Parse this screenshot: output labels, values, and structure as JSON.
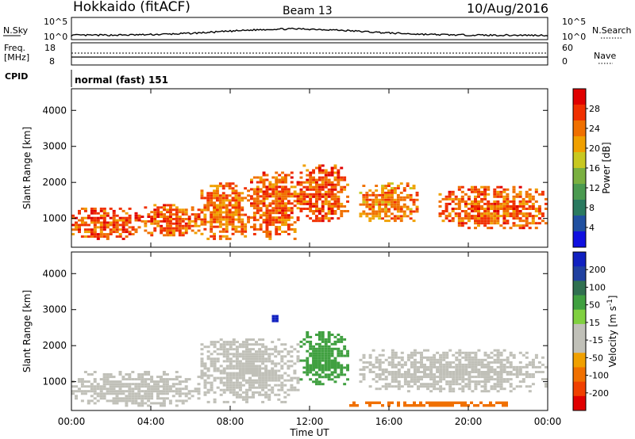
{
  "header": {
    "station": "Hokkaido (fitACF)",
    "beam": "Beam 13",
    "date": "10/Aug/2016"
  },
  "small_panels": {
    "nsky": {
      "label": "N.Sky",
      "tick_top": "10^5",
      "tick_bottom": "10^0",
      "right_label": "N.Search",
      "right_tick_top": "10^5",
      "right_tick_bottom": "10^0"
    },
    "freq": {
      "label_line1": "Freq.",
      "label_line2": "[MHz]",
      "tick_top": "18",
      "tick_bottom": "8",
      "right_label": "Nave",
      "right_tick_top": "60",
      "right_tick_bottom": "0"
    },
    "cpid": {
      "label": "CPID",
      "text": "normal (fast) 151"
    }
  },
  "x_axis": {
    "label": "Time UT",
    "ticks": [
      "00:00",
      "04:00",
      "08:00",
      "12:00",
      "16:00",
      "20:00",
      "00:00"
    ]
  },
  "colors": {
    "power": [
      "#1010e0",
      "#2050a0",
      "#2a7a60",
      "#4a9a50",
      "#7ab040",
      "#c8c820",
      "#f0a000",
      "#f07000",
      "#f03000",
      "#e00000"
    ],
    "velocity": [
      "#e00000",
      "#f04000",
      "#f07000",
      "#f0a000",
      "#c0c0b8",
      "#c0c0b8",
      "#80d040",
      "#40a040",
      "#307050",
      "#2040a0",
      "#1020c0"
    ]
  },
  "chart_data": [
    {
      "type": "heatmap",
      "panel": "power",
      "ylabel": "Slant Range [km]",
      "xlabel": "",
      "yticks": [
        "1000",
        "2000",
        "3000",
        "4000"
      ],
      "ylim": [
        200,
        4600
      ],
      "xlim": [
        0,
        24
      ],
      "colorbar": {
        "label": "Power [dB]",
        "ticks": [
          "4",
          "8",
          "12",
          "16",
          "20",
          "24",
          "28"
        ]
      },
      "regions": [
        {
          "x0": 0.0,
          "x1": 3.5,
          "y0": 400,
          "y1": 1300,
          "value": 27
        },
        {
          "x0": 3.5,
          "x1": 6.5,
          "y0": 500,
          "y1": 1400,
          "value": 26
        },
        {
          "x0": 6.5,
          "x1": 9.0,
          "y0": 400,
          "y1": 2000,
          "value": 25
        },
        {
          "x0": 9.0,
          "x1": 11.5,
          "y0": 400,
          "y1": 2300,
          "value": 26
        },
        {
          "x0": 11.5,
          "x1": 14.0,
          "y0": 900,
          "y1": 2500,
          "value": 27
        },
        {
          "x0": 14.5,
          "x1": 17.5,
          "y0": 900,
          "y1": 2000,
          "value": 24
        },
        {
          "x0": 18.5,
          "x1": 24.0,
          "y0": 700,
          "y1": 1900,
          "value": 26
        }
      ]
    },
    {
      "type": "heatmap",
      "panel": "velocity",
      "ylabel": "Slant Range [km]",
      "xlabel": "Time UT",
      "yticks": [
        "1000",
        "2000",
        "3000",
        "4000"
      ],
      "ylim": [
        200,
        4600
      ],
      "xlim": [
        0,
        24
      ],
      "colorbar": {
        "label": "Velocity [m s^-1]",
        "ticks": [
          "200",
          "100",
          "50",
          "15",
          "-15",
          "-50",
          "-100",
          "-200"
        ]
      },
      "regions": [
        {
          "x0": 0.0,
          "x1": 6.5,
          "y0": 300,
          "y1": 1300,
          "value": 0
        },
        {
          "x0": 6.5,
          "x1": 11.5,
          "y0": 400,
          "y1": 2200,
          "value": 0
        },
        {
          "x0": 11.5,
          "x1": 14.0,
          "y0": 900,
          "y1": 2400,
          "value": 60
        },
        {
          "x0": 14.5,
          "x1": 24.0,
          "y0": 700,
          "y1": 1900,
          "value": 0
        },
        {
          "x0": 14.0,
          "x1": 22.0,
          "y0": 300,
          "y1": 450,
          "value": -60
        },
        {
          "x0": 10.1,
          "x1": 10.6,
          "y0": 2650,
          "y1": 2850,
          "value": 200
        }
      ]
    }
  ]
}
